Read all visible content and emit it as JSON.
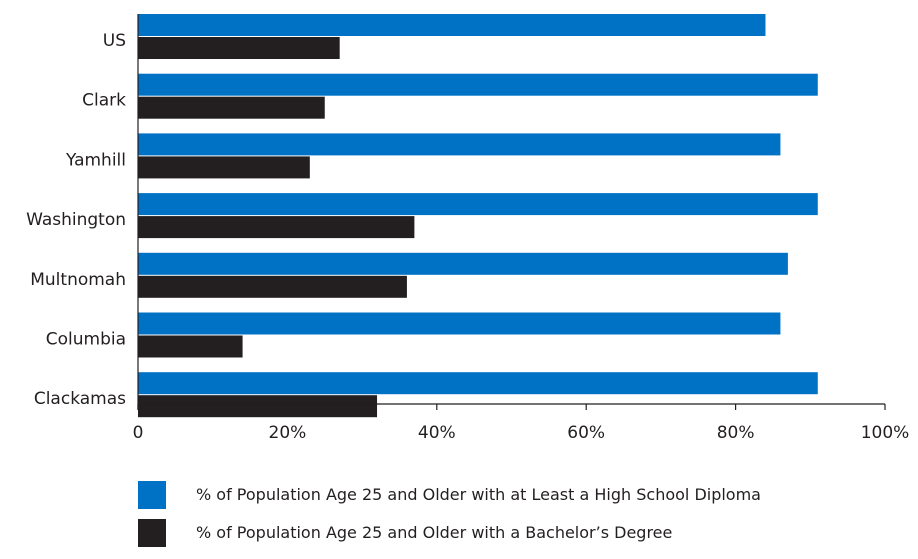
{
  "chart_data": {
    "type": "bar",
    "orientation": "horizontal",
    "categories": [
      "US",
      "Clark",
      "Yamhill",
      "Washington",
      "Multnomah",
      "Columbia",
      "Clackamas"
    ],
    "series": [
      {
        "name": "% of Population Age 25 and Older with at Least a High School Diploma",
        "color": "#0072c6",
        "values": [
          84,
          91,
          86,
          91,
          87,
          86,
          91
        ]
      },
      {
        "name": "% of Population Age 25 and Older with a Bachelor’s Degree",
        "color": "#231f20",
        "values": [
          27,
          25,
          23,
          37,
          36,
          14,
          32
        ]
      }
    ],
    "xlim": [
      0,
      100
    ],
    "xticks": [
      0,
      20,
      40,
      60,
      80,
      100
    ],
    "xtick_labels": [
      "0",
      "20%",
      "40%",
      "60%",
      "80%",
      "100%"
    ],
    "title": "",
    "xlabel": "",
    "ylabel": "",
    "grid": false,
    "legend_position": "bottom"
  }
}
